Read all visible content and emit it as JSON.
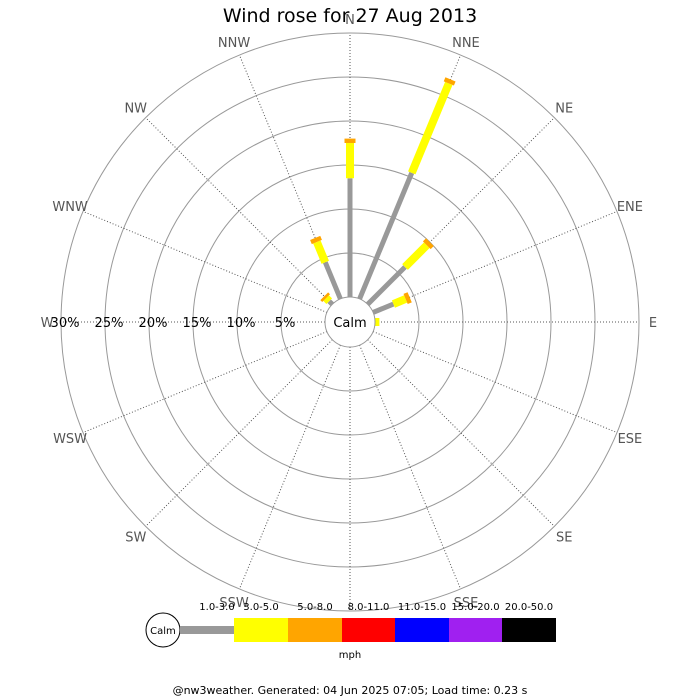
{
  "chart_data": {
    "type": "wind-rose",
    "title": "Wind rose for 27 Aug 2013",
    "directions": [
      "N",
      "NNE",
      "NE",
      "ENE",
      "E",
      "ESE",
      "SE",
      "SSE",
      "S",
      "SSW",
      "SW",
      "WSW",
      "W",
      "WNW",
      "NW",
      "NNW"
    ],
    "radial_ticks": [
      "5%",
      "10%",
      "15%",
      "20%",
      "25%",
      "30%"
    ],
    "radial_tick_values": [
      5,
      10,
      15,
      20,
      25,
      30
    ],
    "radial_max": 30,
    "calm_label": "Calm",
    "unit_label": "mph",
    "speed_bins": [
      {
        "label": "1.0-3.0",
        "color": "#999999"
      },
      {
        "label": "3.0-5.0",
        "color": "#ffff00"
      },
      {
        "label": "5.0-8.0",
        "color": "#ffa500"
      },
      {
        "label": "8.0-11.0",
        "color": "#ff0000"
      },
      {
        "label": "11.0-15.0",
        "color": "#0000ff"
      },
      {
        "label": "15.0-20.0",
        "color": "#a020f0"
      },
      {
        "label": "20.0-50.0",
        "color": "#000000"
      }
    ],
    "series": [
      {
        "direction": "N",
        "values": [
          13.5,
          4.0,
          0.5,
          0,
          0,
          0,
          0
        ]
      },
      {
        "direction": "NNE",
        "values": [
          15.5,
          11.0,
          0.5,
          0,
          0,
          0,
          0
        ]
      },
      {
        "direction": "NE",
        "values": [
          6.0,
          3.5,
          0.5,
          0,
          0,
          0,
          0
        ]
      },
      {
        "direction": "ENE",
        "values": [
          2.5,
          1.5,
          0.5,
          0,
          0,
          0,
          0
        ]
      },
      {
        "direction": "E",
        "values": [
          0,
          0.5,
          0,
          0,
          0,
          0,
          0
        ]
      },
      {
        "direction": "ESE",
        "values": [
          0,
          0,
          0,
          0,
          0,
          0,
          0
        ]
      },
      {
        "direction": "SE",
        "values": [
          0,
          0,
          0,
          0,
          0,
          0,
          0
        ]
      },
      {
        "direction": "SSE",
        "values": [
          0,
          0,
          0,
          0,
          0,
          0,
          0
        ]
      },
      {
        "direction": "S",
        "values": [
          0,
          0,
          0,
          0,
          0,
          0,
          0
        ]
      },
      {
        "direction": "SSW",
        "values": [
          0,
          0,
          0,
          0,
          0,
          0,
          0
        ]
      },
      {
        "direction": "SW",
        "values": [
          0,
          0,
          0,
          0,
          0,
          0,
          0
        ]
      },
      {
        "direction": "WSW",
        "values": [
          0,
          0,
          0,
          0,
          0,
          0,
          0
        ]
      },
      {
        "direction": "W",
        "values": [
          0,
          0,
          0,
          0,
          0,
          0,
          0
        ]
      },
      {
        "direction": "WNW",
        "values": [
          0,
          0,
          0,
          0,
          0,
          0,
          0
        ]
      },
      {
        "direction": "NW",
        "values": [
          0.5,
          0.5,
          0.3,
          0,
          0,
          0,
          0
        ]
      },
      {
        "direction": "NNW",
        "values": [
          4.5,
          2.5,
          0.5,
          0,
          0,
          0,
          0
        ]
      }
    ]
  },
  "footer": "@nw3weather. Generated: 04 Jun 2025 07:05; Load time: 0.23 s"
}
